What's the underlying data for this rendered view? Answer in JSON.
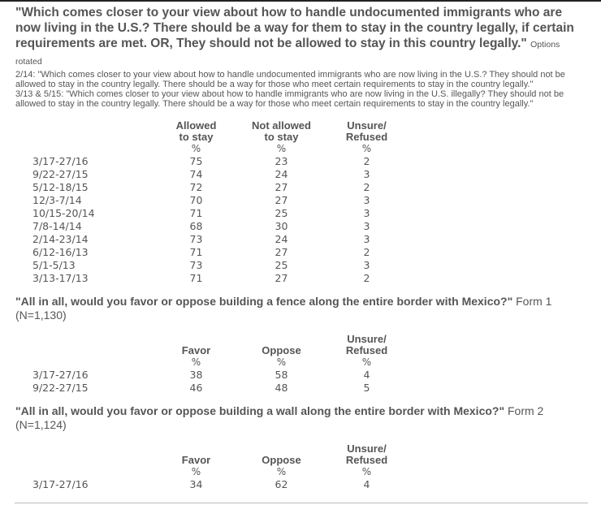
{
  "q1": {
    "question": "\"Which comes closer to your view about how to handle undocumented immigrants who are now living in the U.S.? There should be a way for them to stay in the country legally, if certain requirements are met. OR, They should not be allowed to stay in this country legally.\"",
    "suffix": "Options rotated",
    "notes": [
      "2/14: \"Which comes closer to your view about how to handle undocumented immigrants who are now living in the U.S.? They should not be allowed to stay in the country legally. There should be a way for those who meet certain requirements to stay in the country legally.\"",
      "3/13 & 5/15: \"Which comes closer to your view about how to handle immigrants who are now living in the U.S. illegally? They should not be allowed to stay in the country legally. There should be a way for those who meet certain requirements to stay in the country legally.\""
    ],
    "headers": [
      "Allowed to stay",
      "Not allowed to stay",
      "Unsure/ Refused"
    ],
    "unit": "%",
    "rows": [
      {
        "date": "3/17-27/16",
        "v": [
          "75",
          "23",
          "2"
        ]
      },
      {
        "date": "9/22-27/15",
        "v": [
          "74",
          "24",
          "3"
        ]
      },
      {
        "date": "5/12-18/15",
        "v": [
          "72",
          "27",
          "2"
        ]
      },
      {
        "date": "12/3-7/14",
        "v": [
          "70",
          "27",
          "3"
        ]
      },
      {
        "date": "10/15-20/14",
        "v": [
          "71",
          "25",
          "3"
        ]
      },
      {
        "date": "7/8-14/14",
        "v": [
          "68",
          "30",
          "3"
        ]
      },
      {
        "date": "2/14-23/14",
        "v": [
          "73",
          "24",
          "3"
        ]
      },
      {
        "date": "6/12-16/13",
        "v": [
          "71",
          "27",
          "2"
        ]
      },
      {
        "date": "5/1-5/13",
        "v": [
          "73",
          "25",
          "3"
        ]
      },
      {
        "date": "3/13-17/13",
        "v": [
          "71",
          "27",
          "2"
        ]
      }
    ]
  },
  "q2": {
    "question": "\"All in all, would you favor or oppose building a fence along the entire border with Mexico?\"",
    "suffix": "Form 1 (N=1,130)",
    "headers": [
      "Favor",
      "Oppose",
      "Unsure/ Refused"
    ],
    "unit": "%",
    "rows": [
      {
        "date": "3/17-27/16",
        "v": [
          "38",
          "58",
          "4"
        ]
      },
      {
        "date": "9/22-27/15",
        "v": [
          "46",
          "48",
          "5"
        ]
      }
    ]
  },
  "q3": {
    "question": "\"All in all, would you favor or oppose building a wall along the entire border with Mexico?\"",
    "suffix": "Form 2 (N=1,124)",
    "headers": [
      "Favor",
      "Oppose",
      "Unsure/ Refused"
    ],
    "unit": "%",
    "rows": [
      {
        "date": "3/17-27/16",
        "v": [
          "34",
          "62",
          "4"
        ]
      }
    ]
  }
}
